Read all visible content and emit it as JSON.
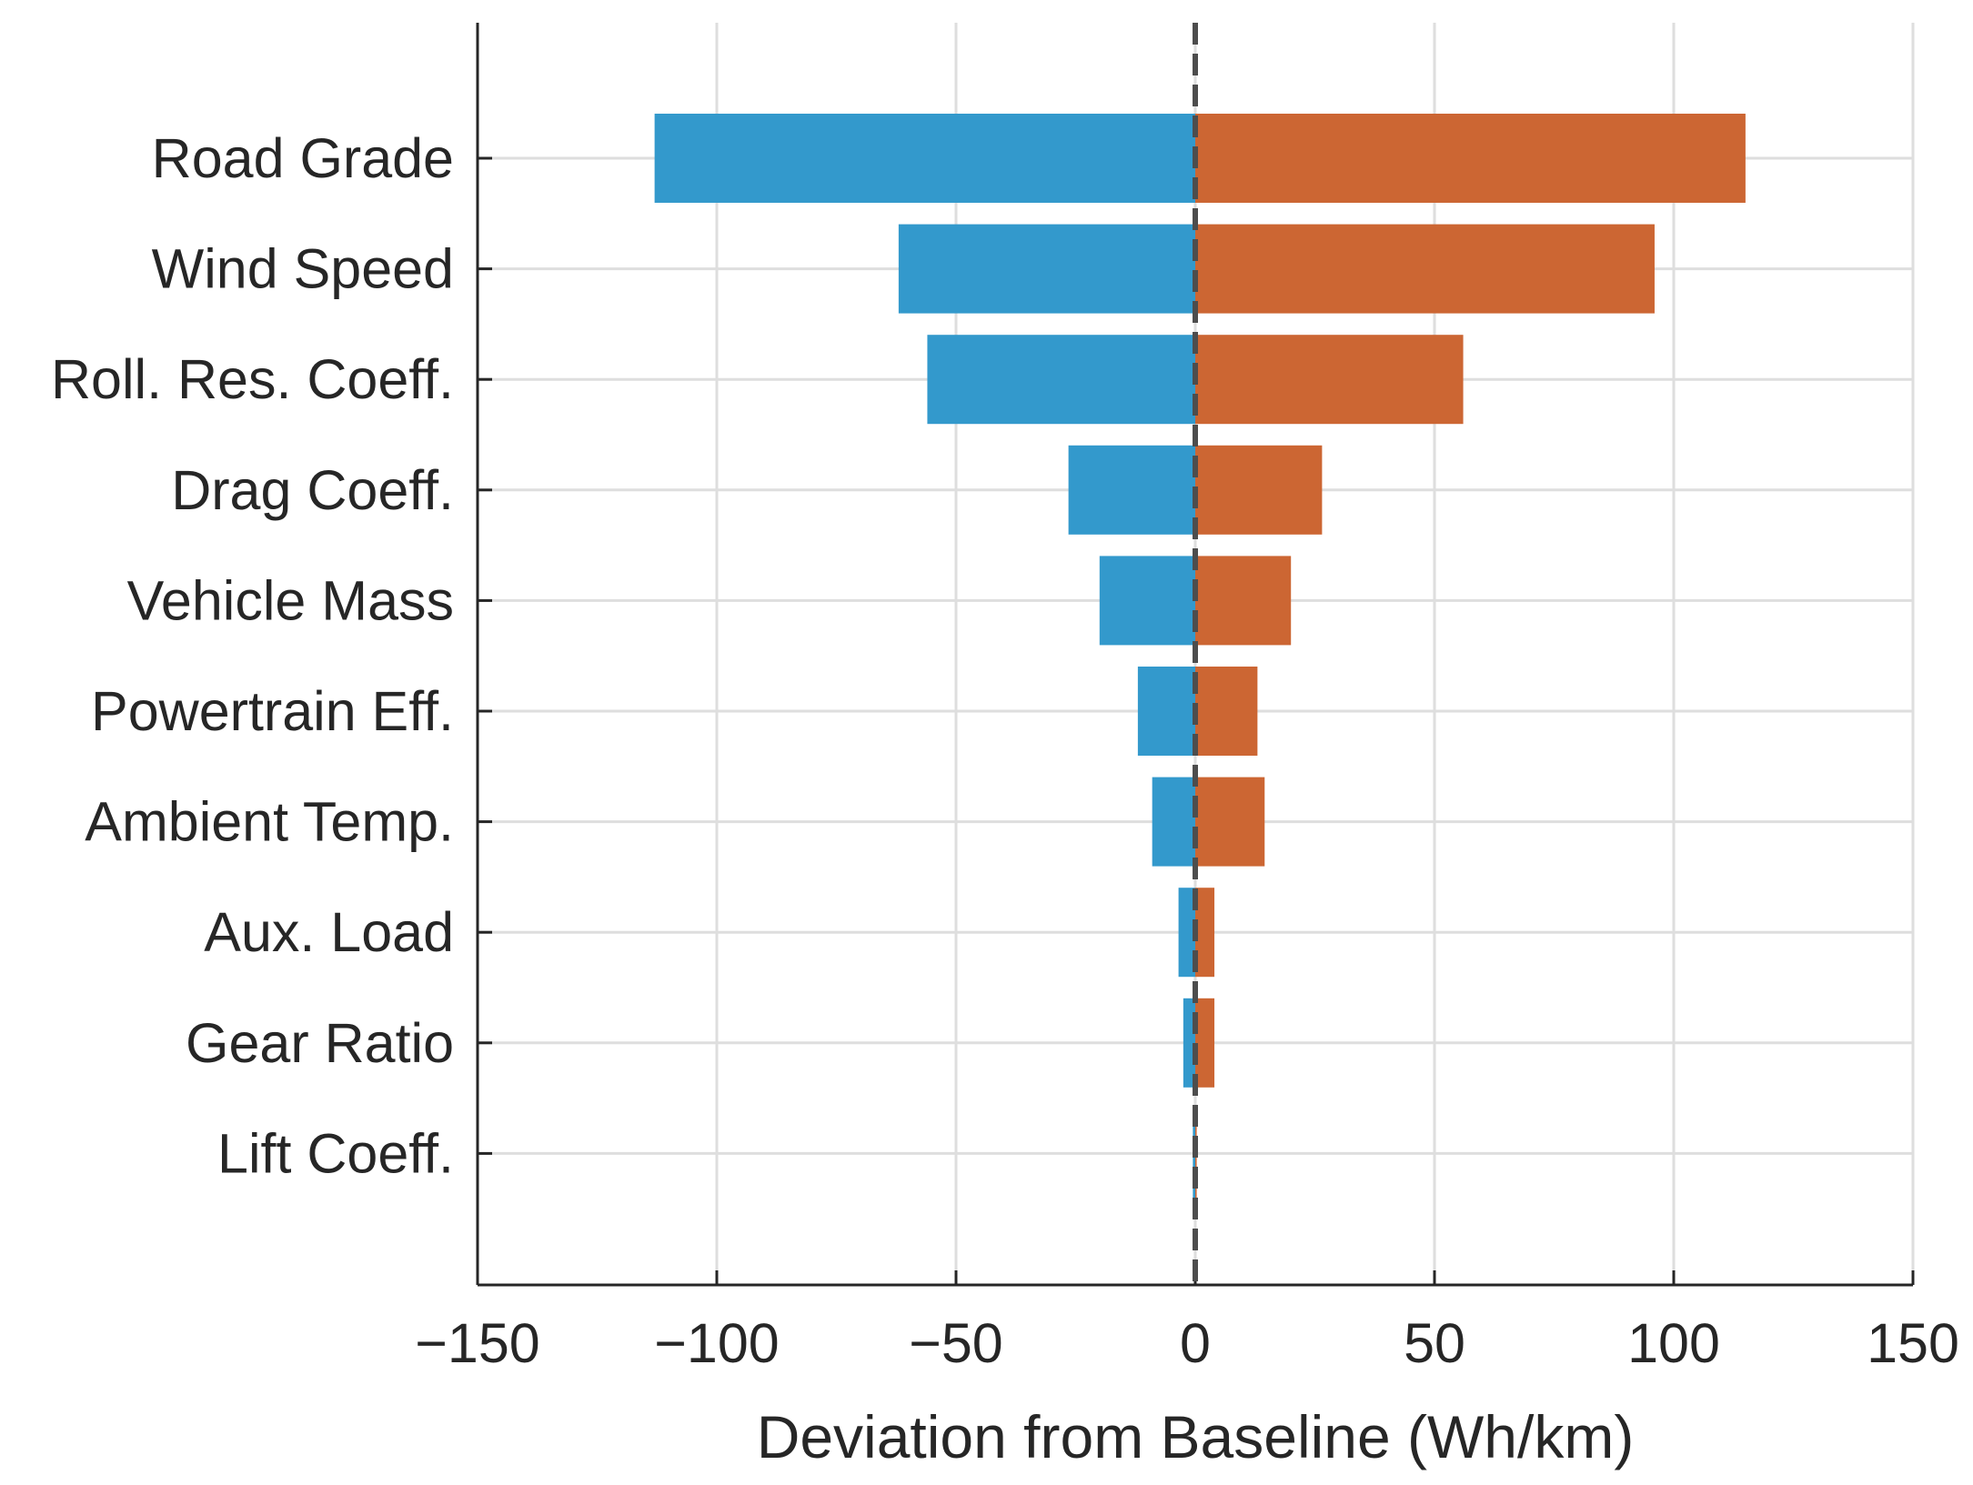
{
  "chart_data": {
    "type": "bar",
    "orientation": "horizontal",
    "subtype": "tornado",
    "categories": [
      "Road Grade",
      "Wind Speed",
      "Roll. Res. Coeff.",
      "Drag Coeff.",
      "Vehicle Mass",
      "Powertrain Eff.",
      "Ambient Temp.",
      "Aux. Load",
      "Gear Ratio",
      "Lift Coeff."
    ],
    "series": [
      {
        "color": "#3399cc",
        "values": [
          -113,
          -62,
          -56,
          -26.5,
          -20,
          -12,
          -9,
          -3.5,
          -2.5,
          -0.5
        ]
      },
      {
        "color": "#cc6633",
        "values": [
          115,
          96,
          56,
          26.5,
          20,
          13,
          14.5,
          4,
          4,
          0.3
        ]
      }
    ],
    "xlabel": "Deviation from Baseline (Wh/km)",
    "ylabel": "",
    "title": "",
    "xlim": [
      -150,
      150
    ],
    "xticks": [
      -150,
      -100,
      -50,
      0,
      50,
      100,
      150
    ],
    "xtick_labels": [
      "−150",
      "−100",
      "−50",
      "0",
      "50",
      "100",
      "150"
    ],
    "baseline": 0,
    "baseline_style": "dashed",
    "grid": true,
    "legend": "none"
  }
}
